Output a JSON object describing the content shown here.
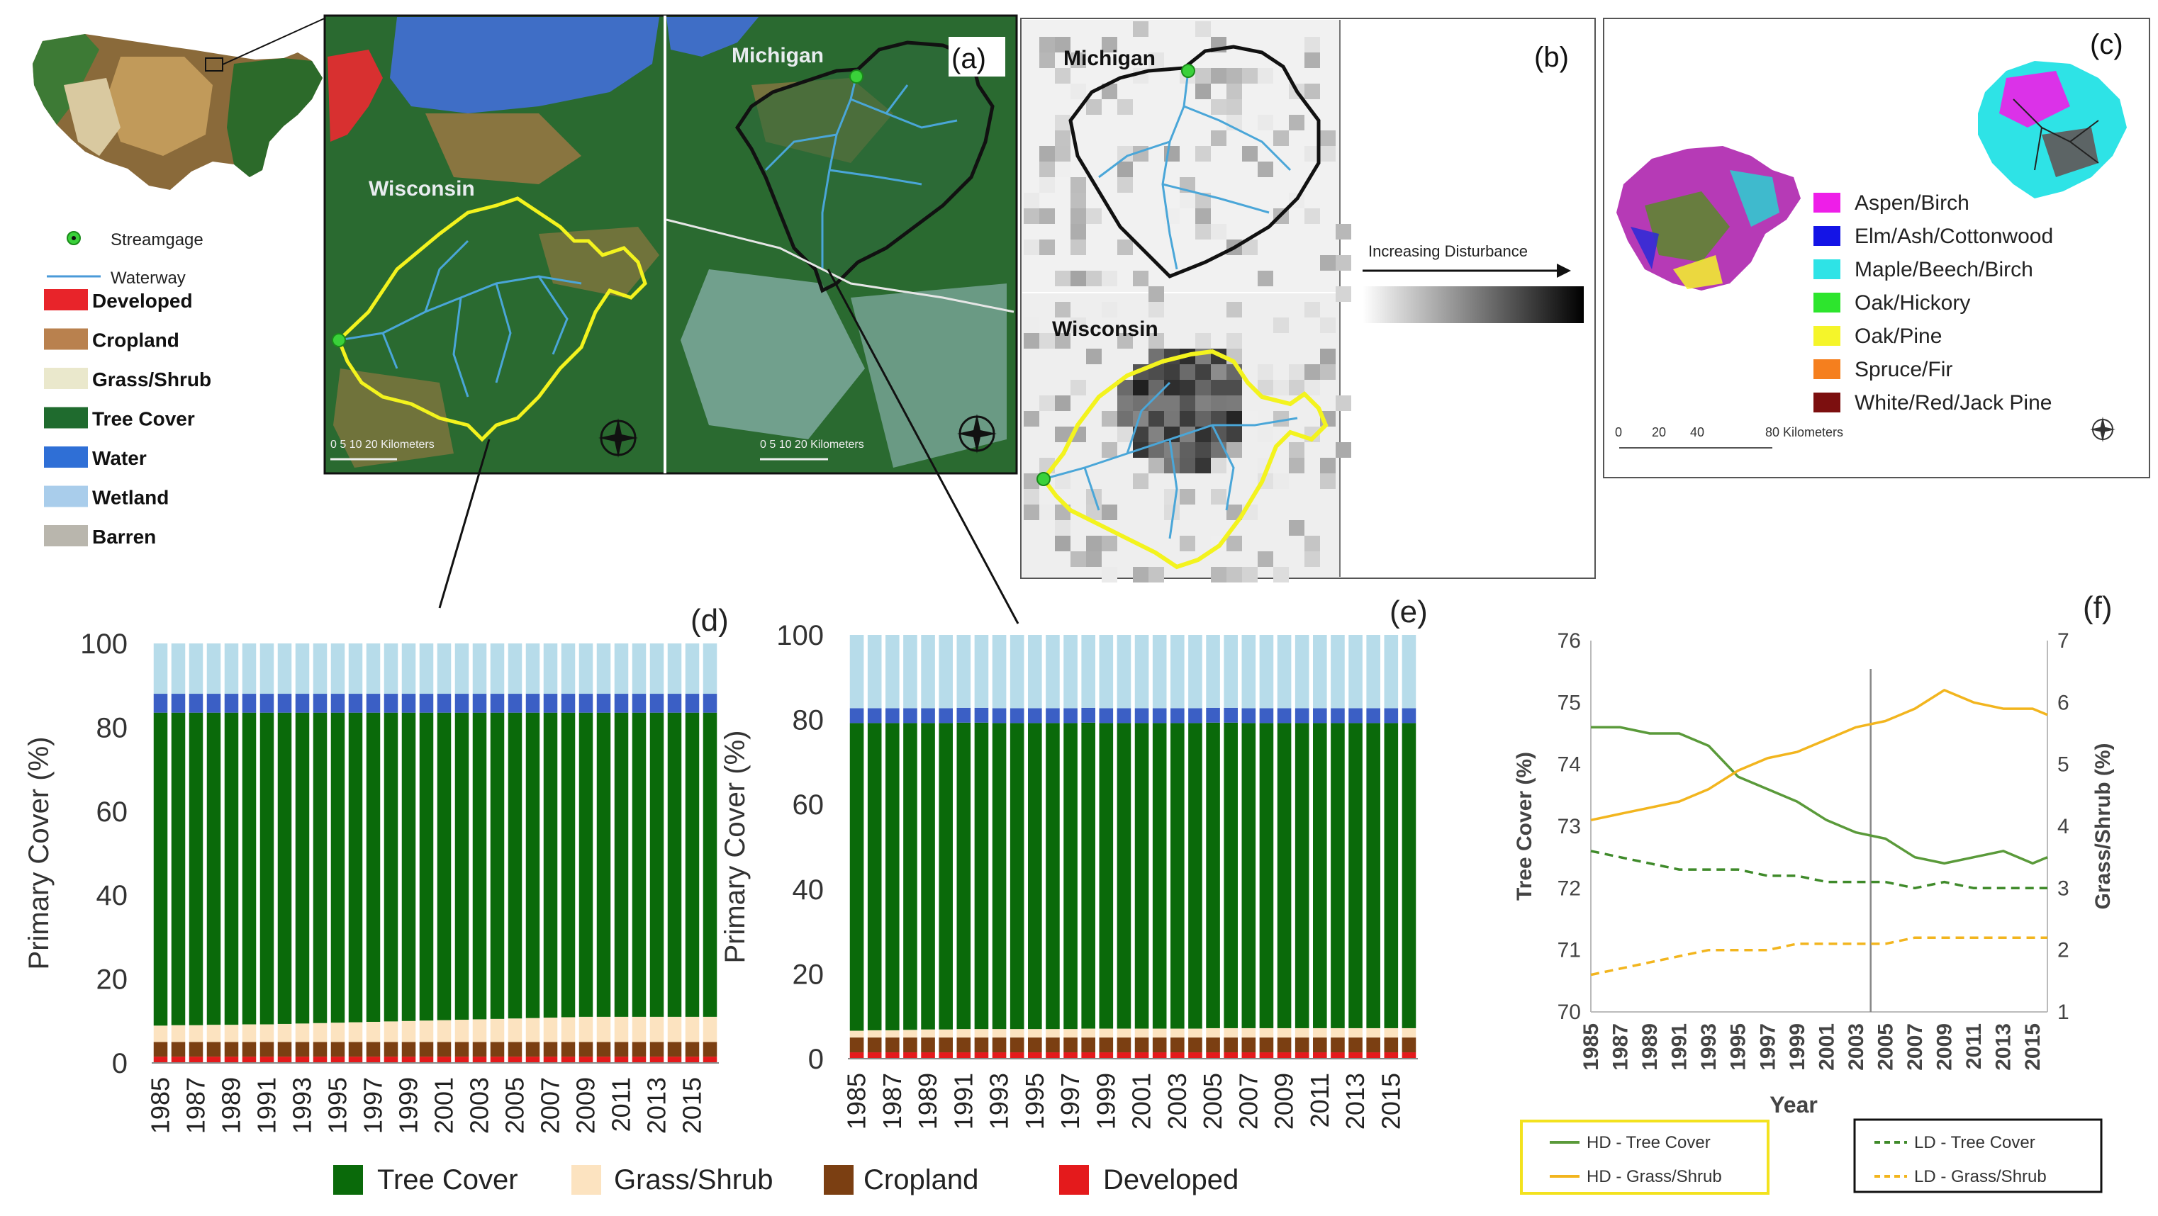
{
  "colors": {
    "developed": "#e8242a",
    "cropland": "#b9814e",
    "grass": "#eae8cc",
    "tree": "#1f6b2e",
    "water": "#2f6fd6",
    "wetland": "#a9cdeb",
    "barren": "#b9b6ad",
    "bar_tree": "#0a6a0a",
    "bar_grass": "#fce3c0",
    "bar_crop": "#7b3f12",
    "bar_dev": "#e41a1c",
    "bar_water": "#3b5fc5",
    "bar_wet": "#b7dcea",
    "hd_tree": "#5a9a3a",
    "hd_grass": "#f2b51e",
    "ld_tree": "#3f8a2a",
    "ld_grass": "#f2b51e"
  },
  "panel_a": {
    "label": "(a)",
    "state_wi": "Wisconsin",
    "state_mi": "Michigan",
    "scale_left": "0  5 10      20 Kilometers",
    "scale_right": "0  5 10      20 Kilometers"
  },
  "legend_a": {
    "streamgage": "Streamgage",
    "waterway": "Waterway",
    "items": [
      {
        "label": "Developed",
        "color": "#e8242a"
      },
      {
        "label": "Cropland",
        "color": "#b9814e"
      },
      {
        "label": "Grass/Shrub",
        "color": "#eae8cc"
      },
      {
        "label": "Tree Cover",
        "color": "#1f6b2e"
      },
      {
        "label": "Water",
        "color": "#2f6fd6"
      },
      {
        "label": "Wetland",
        "color": "#a9cdeb"
      },
      {
        "label": "Barren",
        "color": "#b9b6ad"
      }
    ]
  },
  "panel_b": {
    "label": "(b)",
    "state_mi": "Michigan",
    "state_wi": "Wisconsin",
    "gradient_label": "Increasing Disturbance"
  },
  "panel_c": {
    "label": "(c)",
    "scale": [
      "0",
      "20",
      "40",
      "80 Kilometers"
    ],
    "items": [
      {
        "label": "Aspen/Birch",
        "color": "#ee1ee8"
      },
      {
        "label": "Elm/Ash/Cottonwood",
        "color": "#1414e6"
      },
      {
        "label": "Maple/Beech/Birch",
        "color": "#2ee3e6"
      },
      {
        "label": "Oak/Hickory",
        "color": "#2de52d"
      },
      {
        "label": "Oak/Pine",
        "color": "#f5f52a"
      },
      {
        "label": "Spruce/Fir",
        "color": "#f57f1e"
      },
      {
        "label": "White/Red/Jack Pine",
        "color": "#7c0f0f"
      }
    ]
  },
  "bar_legend": [
    "Tree Cover",
    "Grass/Shrub",
    "Cropland",
    "Developed"
  ],
  "line_legend": {
    "hd_tree": "HD - Tree Cover",
    "hd_grass": "HD - Grass/Shrub",
    "ld_tree": "LD - Tree Cover",
    "ld_grass": "LD - Grass/Shrub"
  },
  "chart_data": [
    {
      "id": "d",
      "type": "bar",
      "panel_label": "(d)",
      "ylabel": "Primary Cover (%)",
      "xlabel": "",
      "ylim": [
        0,
        100
      ],
      "yticks": [
        0,
        20,
        40,
        60,
        80,
        100
      ],
      "x_tick_labels": [
        "1985",
        "1987",
        "1989",
        "1991",
        "1993",
        "1995",
        "1997",
        "1999",
        "2001",
        "2003",
        "2005",
        "2007",
        "2009",
        "2011",
        "2013",
        "2015"
      ],
      "categories": [
        "1985",
        "1986",
        "1987",
        "1988",
        "1989",
        "1990",
        "1991",
        "1992",
        "1993",
        "1994",
        "1995",
        "1996",
        "1997",
        "1998",
        "1999",
        "2000",
        "2001",
        "2002",
        "2003",
        "2004",
        "2005",
        "2006",
        "2007",
        "2008",
        "2009",
        "2010",
        "2011",
        "2012",
        "2013",
        "2014",
        "2015",
        "2016"
      ],
      "stacking": "stacked",
      "series": [
        {
          "name": "Developed",
          "values": [
            1.5,
            1.5,
            1.5,
            1.5,
            1.5,
            1.5,
            1.5,
            1.5,
            1.5,
            1.5,
            1.5,
            1.5,
            1.5,
            1.5,
            1.5,
            1.5,
            1.5,
            1.5,
            1.5,
            1.5,
            1.5,
            1.5,
            1.5,
            1.5,
            1.5,
            1.5,
            1.5,
            1.5,
            1.5,
            1.5,
            1.5,
            1.5
          ]
        },
        {
          "name": "Cropland",
          "values": [
            3.5,
            3.5,
            3.5,
            3.5,
            3.5,
            3.5,
            3.5,
            3.5,
            3.5,
            3.5,
            3.5,
            3.5,
            3.5,
            3.5,
            3.5,
            3.5,
            3.5,
            3.5,
            3.5,
            3.5,
            3.5,
            3.5,
            3.5,
            3.5,
            3.5,
            3.5,
            3.5,
            3.5,
            3.5,
            3.5,
            3.5,
            3.5
          ]
        },
        {
          "name": "Grass/Shrub",
          "values": [
            3.9,
            4.0,
            4.0,
            4.1,
            4.1,
            4.2,
            4.2,
            4.3,
            4.4,
            4.5,
            4.6,
            4.7,
            4.8,
            4.9,
            5.0,
            5.1,
            5.2,
            5.3,
            5.4,
            5.5,
            5.6,
            5.7,
            5.8,
            5.9,
            6.0,
            6.0,
            6.0,
            6.0,
            6.0,
            6.0,
            6.0,
            6.0
          ]
        },
        {
          "name": "Tree Cover",
          "values": [
            74.6,
            74.5,
            74.5,
            74.4,
            74.4,
            74.3,
            74.3,
            74.2,
            74.1,
            74.0,
            73.9,
            73.8,
            73.7,
            73.6,
            73.5,
            73.4,
            73.3,
            73.2,
            73.1,
            73.0,
            72.9,
            72.8,
            72.7,
            72.6,
            72.5,
            72.5,
            72.5,
            72.5,
            72.5,
            72.5,
            72.5,
            72.5
          ]
        },
        {
          "name": "Water",
          "values": [
            4.5,
            4.5,
            4.5,
            4.5,
            4.5,
            4.5,
            4.5,
            4.5,
            4.5,
            4.5,
            4.5,
            4.5,
            4.5,
            4.5,
            4.5,
            4.5,
            4.5,
            4.5,
            4.5,
            4.5,
            4.5,
            4.5,
            4.5,
            4.5,
            4.5,
            4.5,
            4.5,
            4.5,
            4.5,
            4.5,
            4.5,
            4.5
          ]
        },
        {
          "name": "Wetland",
          "values": [
            12.0,
            12.0,
            12.0,
            12.0,
            12.0,
            12.0,
            12.0,
            12.0,
            12.0,
            12.0,
            12.0,
            12.0,
            12.0,
            12.0,
            12.0,
            12.0,
            12.0,
            12.0,
            12.0,
            12.0,
            12.0,
            12.0,
            12.0,
            12.0,
            12.0,
            12.0,
            12.0,
            12.0,
            12.0,
            12.0,
            12.0,
            12.0
          ]
        }
      ]
    },
    {
      "id": "e",
      "type": "bar",
      "panel_label": "(e)",
      "ylabel": "Primary Cover (%)",
      "xlabel": "",
      "ylim": [
        0,
        100
      ],
      "yticks": [
        0,
        20,
        40,
        60,
        80,
        100
      ],
      "x_tick_labels": [
        "1985",
        "1987",
        "1989",
        "1991",
        "1993",
        "1995",
        "1997",
        "1999",
        "2001",
        "2003",
        "2005",
        "2007",
        "2009",
        "2011",
        "2013",
        "2015"
      ],
      "categories": [
        "1985",
        "1986",
        "1987",
        "1988",
        "1989",
        "1990",
        "1991",
        "1992",
        "1993",
        "1994",
        "1995",
        "1996",
        "1997",
        "1998",
        "1999",
        "2000",
        "2001",
        "2002",
        "2003",
        "2004",
        "2005",
        "2006",
        "2007",
        "2008",
        "2009",
        "2010",
        "2011",
        "2012",
        "2013",
        "2014",
        "2015",
        "2016"
      ],
      "stacking": "stacked",
      "series": [
        {
          "name": "Developed",
          "values": [
            1.5,
            1.5,
            1.5,
            1.5,
            1.5,
            1.5,
            1.5,
            1.5,
            1.5,
            1.5,
            1.5,
            1.5,
            1.5,
            1.5,
            1.5,
            1.5,
            1.5,
            1.5,
            1.5,
            1.5,
            1.5,
            1.5,
            1.5,
            1.5,
            1.5,
            1.5,
            1.5,
            1.5,
            1.5,
            1.5,
            1.5,
            1.5
          ]
        },
        {
          "name": "Cropland",
          "values": [
            3.5,
            3.5,
            3.5,
            3.5,
            3.5,
            3.5,
            3.5,
            3.5,
            3.5,
            3.5,
            3.5,
            3.5,
            3.5,
            3.5,
            3.5,
            3.5,
            3.5,
            3.5,
            3.5,
            3.5,
            3.5,
            3.5,
            3.5,
            3.5,
            3.5,
            3.5,
            3.5,
            3.5,
            3.5,
            3.5,
            3.5,
            3.5
          ]
        },
        {
          "name": "Grass/Shrub",
          "values": [
            1.6,
            1.7,
            1.7,
            1.8,
            1.9,
            1.9,
            2.0,
            2.0,
            2.0,
            2.0,
            2.0,
            2.0,
            2.0,
            2.1,
            2.1,
            2.1,
            2.1,
            2.1,
            2.1,
            2.1,
            2.2,
            2.2,
            2.2,
            2.2,
            2.2,
            2.2,
            2.2,
            2.2,
            2.2,
            2.2,
            2.2,
            2.2
          ]
        },
        {
          "name": "Tree Cover",
          "values": [
            72.6,
            72.5,
            72.5,
            72.4,
            72.3,
            72.3,
            72.3,
            72.3,
            72.2,
            72.2,
            72.2,
            72.2,
            72.2,
            72.2,
            72.1,
            72.1,
            72.1,
            72.1,
            72.1,
            72.1,
            72.1,
            72.1,
            72.0,
            72.0,
            72.0,
            72.0,
            72.0,
            72.0,
            72.0,
            72.0,
            72.0,
            72.0
          ]
        },
        {
          "name": "Water",
          "values": [
            3.5,
            3.5,
            3.5,
            3.5,
            3.5,
            3.5,
            3.5,
            3.5,
            3.5,
            3.5,
            3.5,
            3.5,
            3.5,
            3.5,
            3.5,
            3.5,
            3.5,
            3.5,
            3.5,
            3.5,
            3.5,
            3.5,
            3.5,
            3.5,
            3.5,
            3.5,
            3.5,
            3.5,
            3.5,
            3.5,
            3.5,
            3.5
          ]
        },
        {
          "name": "Wetland",
          "values": [
            17.3,
            17.3,
            17.3,
            17.3,
            17.3,
            17.3,
            17.2,
            17.2,
            17.3,
            17.3,
            17.3,
            17.3,
            17.3,
            17.2,
            17.3,
            17.3,
            17.3,
            17.3,
            17.3,
            17.3,
            17.2,
            17.2,
            17.3,
            17.3,
            17.3,
            17.3,
            17.3,
            17.3,
            17.3,
            17.3,
            17.3,
            17.3
          ]
        }
      ]
    },
    {
      "id": "f",
      "type": "line",
      "panel_label": "(f)",
      "xlabel": "Year",
      "ylabel": "Tree Cover (%)",
      "y2label": "Grass/Shrub (%)",
      "ylim": [
        70,
        76
      ],
      "y2lim": [
        1,
        7
      ],
      "yticks": [
        70,
        71,
        72,
        73,
        74,
        75,
        76
      ],
      "y2ticks": [
        1,
        2,
        3,
        4,
        5,
        6,
        7
      ],
      "x_tick_labels": [
        "1985",
        "1987",
        "1989",
        "1991",
        "1993",
        "1995",
        "1997",
        "1999",
        "2001",
        "2003",
        "2005",
        "2007",
        "2009",
        "2011",
        "2013",
        "2015"
      ],
      "xlim": [
        1985,
        2016
      ],
      "vline": 2004,
      "series": [
        {
          "name": "HD - Tree Cover",
          "axis": "left",
          "style": "solid",
          "x": [
            1985,
            1987,
            1989,
            1991,
            1993,
            1995,
            1997,
            1999,
            2001,
            2003,
            2005,
            2007,
            2009,
            2011,
            2013,
            2015,
            2016
          ],
          "y": [
            74.6,
            74.6,
            74.5,
            74.5,
            74.3,
            73.8,
            73.6,
            73.4,
            73.1,
            72.9,
            72.8,
            72.5,
            72.4,
            72.5,
            72.6,
            72.4,
            72.5
          ]
        },
        {
          "name": "HD - Grass/Shrub",
          "axis": "right",
          "style": "solid",
          "x": [
            1985,
            1987,
            1989,
            1991,
            1993,
            1995,
            1997,
            1999,
            2001,
            2003,
            2005,
            2007,
            2009,
            2011,
            2013,
            2015,
            2016
          ],
          "y": [
            4.1,
            4.2,
            4.3,
            4.4,
            4.6,
            4.9,
            5.1,
            5.2,
            5.4,
            5.6,
            5.7,
            5.9,
            6.2,
            6.0,
            5.9,
            5.9,
            5.8
          ]
        },
        {
          "name": "LD - Tree Cover",
          "axis": "left",
          "style": "dashed",
          "x": [
            1985,
            1987,
            1989,
            1991,
            1993,
            1995,
            1997,
            1999,
            2001,
            2003,
            2005,
            2007,
            2009,
            2011,
            2013,
            2015,
            2016
          ],
          "y": [
            72.6,
            72.5,
            72.4,
            72.3,
            72.3,
            72.3,
            72.2,
            72.2,
            72.1,
            72.1,
            72.1,
            72.0,
            72.1,
            72.0,
            72.0,
            72.0,
            72.0
          ]
        },
        {
          "name": "LD - Grass/Shrub",
          "axis": "right",
          "style": "dashed",
          "x": [
            1985,
            1987,
            1989,
            1991,
            1993,
            1995,
            1997,
            1999,
            2001,
            2003,
            2005,
            2007,
            2009,
            2011,
            2013,
            2015,
            2016
          ],
          "y": [
            1.6,
            1.7,
            1.8,
            1.9,
            2.0,
            2.0,
            2.0,
            2.1,
            2.1,
            2.1,
            2.1,
            2.2,
            2.2,
            2.2,
            2.2,
            2.2,
            2.2
          ]
        }
      ]
    }
  ]
}
